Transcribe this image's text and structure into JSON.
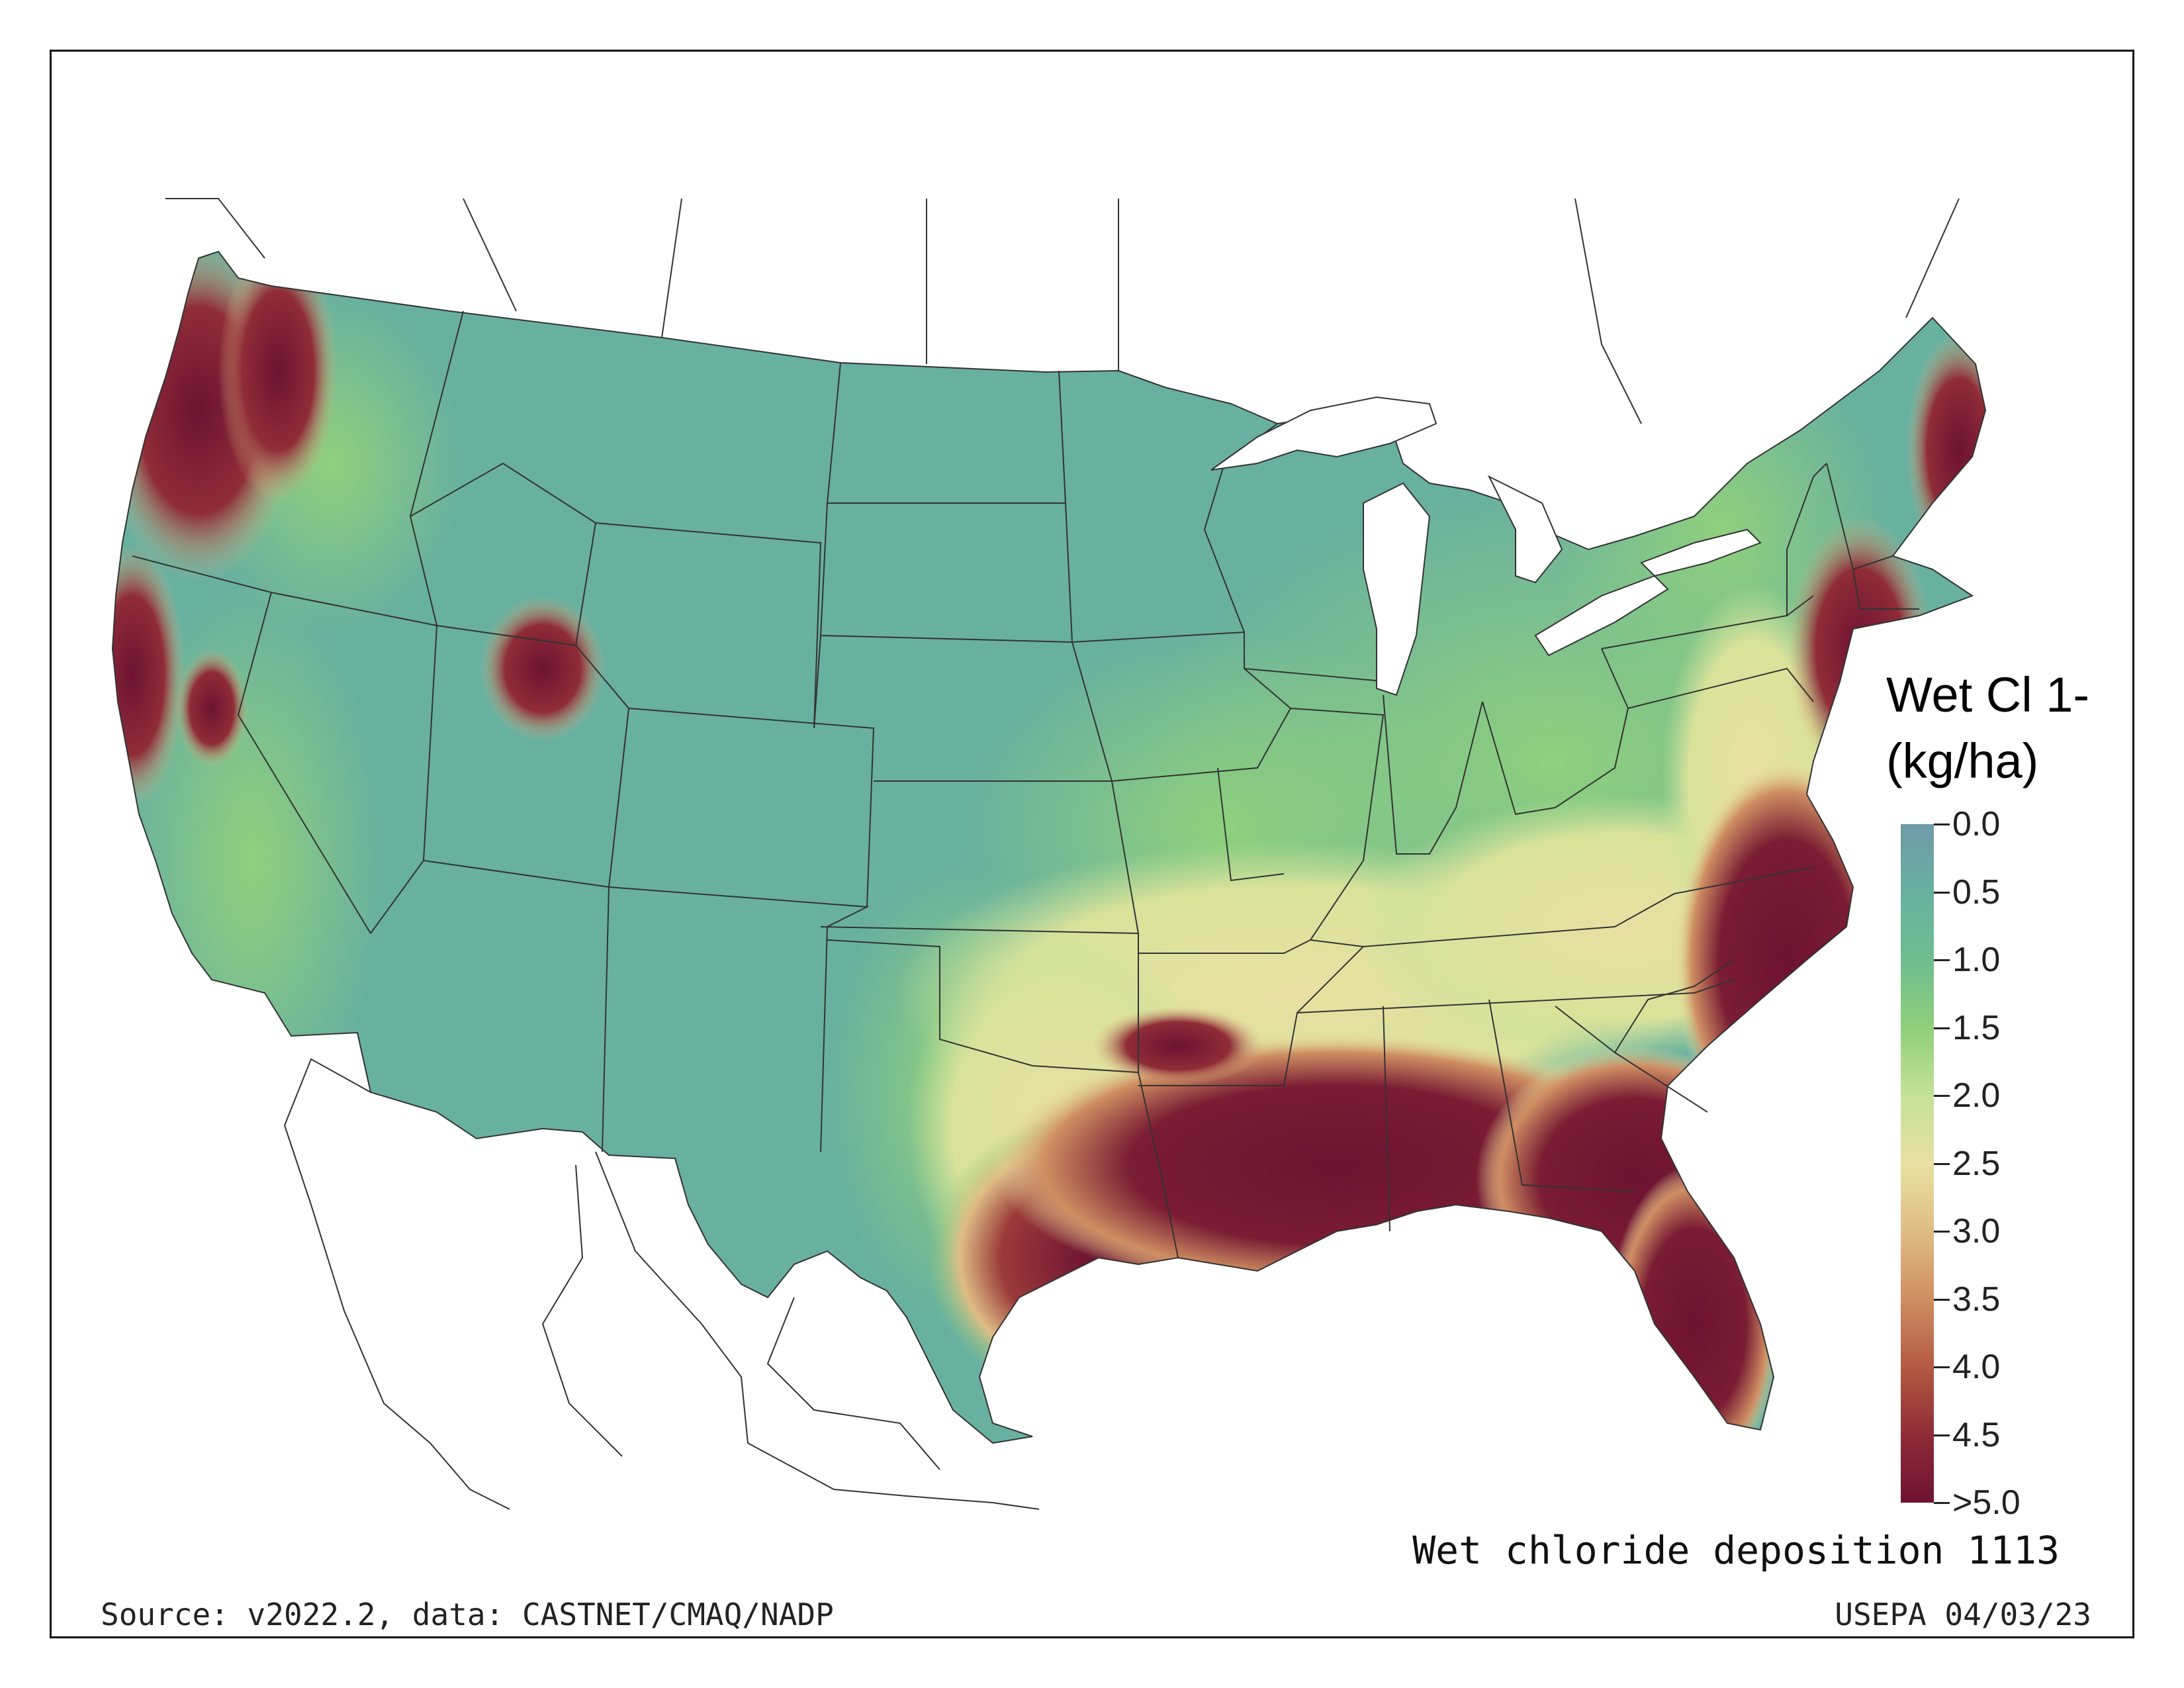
{
  "map": {
    "title": "Wet chloride deposition 1113",
    "region": "Contiguous United States",
    "legend": {
      "title_line1": "Wet Cl 1-",
      "title_line2": "(kg/ha)",
      "labels": [
        "0.0",
        "0.5",
        "1.0",
        "1.5",
        "2.0",
        "2.5",
        "3.0",
        "3.5",
        "4.0",
        "4.5",
        ">5.0"
      ],
      "values": [
        0.0,
        0.5,
        1.0,
        1.5,
        2.0,
        2.5,
        3.0,
        3.5,
        4.0,
        4.5,
        5.0
      ],
      "colors": [
        "#6f9aa8",
        "#68b0a0",
        "#6fbd8f",
        "#8fcf7c",
        "#c4e19a",
        "#e8e0a2",
        "#dfbd85",
        "#cf8e62",
        "#b45a43",
        "#8f2c37",
        "#6d1232"
      ]
    },
    "colors": {
      "water_bg": "#ffffff",
      "boundary": "#333333",
      "low": "#68b0a0",
      "mid": "#8fd07c",
      "high": "#6d1232"
    }
  },
  "footer": {
    "source": "Source: v2022.2, data: CASTNET/CMAQ/NADP",
    "agency": "USEPA 04/03/23"
  }
}
